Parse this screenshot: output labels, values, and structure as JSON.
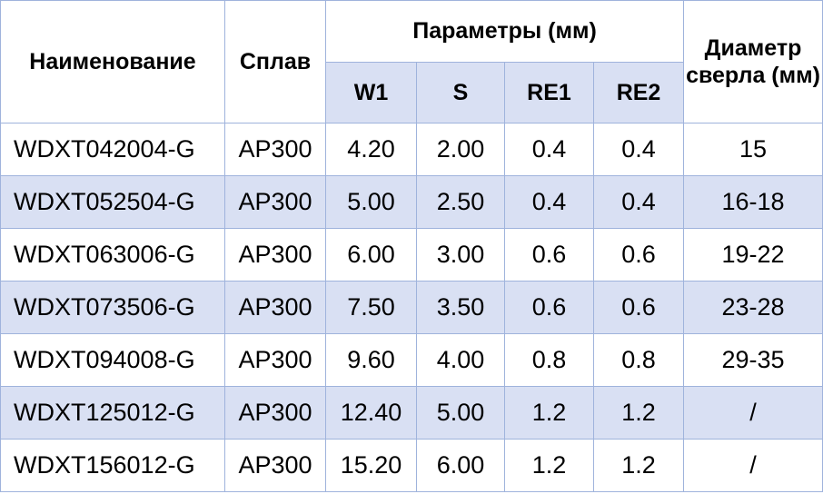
{
  "table": {
    "header": {
      "name": "Наименование",
      "alloy": "Сплав",
      "params": "Параметры (мм)",
      "w1": "W1",
      "s": "S",
      "re1": "RE1",
      "re2": "RE2",
      "diameter": "Диаметр сверла (мм)"
    },
    "rows": [
      [
        "WDXT042004-G",
        "AP300",
        "4.20",
        "2.00",
        "0.4",
        "0.4",
        "15"
      ],
      [
        "WDXT052504-G",
        "AP300",
        "5.00",
        "2.50",
        "0.4",
        "0.4",
        "16-18"
      ],
      [
        "WDXT063006-G",
        "AP300",
        "6.00",
        "3.00",
        "0.6",
        "0.6",
        "19-22"
      ],
      [
        "WDXT073506-G",
        "AP300",
        "7.50",
        "3.50",
        "0.6",
        "0.6",
        "23-28"
      ],
      [
        "WDXT094008-G",
        "AP300",
        "9.60",
        "4.00",
        "0.8",
        "0.8",
        "29-35"
      ],
      [
        "WDXT125012-G",
        "AP300",
        "12.40",
        "5.00",
        "1.2",
        "1.2",
        "/"
      ],
      [
        "WDXT156012-G",
        "AP300",
        "15.20",
        "6.00",
        "1.2",
        "1.2",
        "/"
      ]
    ]
  }
}
